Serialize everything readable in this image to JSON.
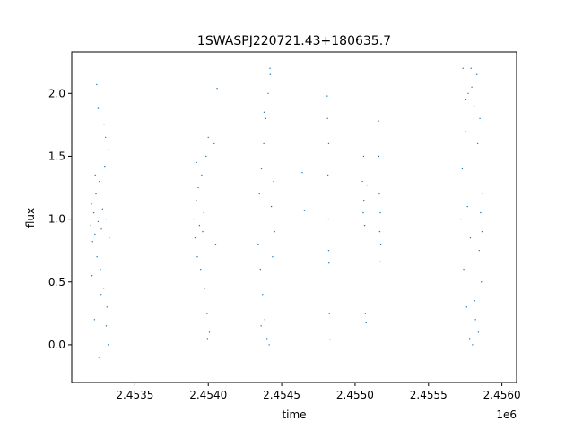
{
  "chart_data": {
    "type": "scatter",
    "title": "1SWASPJ220721.43+180635.7",
    "xlabel": "time",
    "ylabel": "flux",
    "x_offset_label": "1e6",
    "xlim": [
      2453070,
      2456100
    ],
    "ylim": [
      -0.3,
      2.33
    ],
    "x_ticks": [
      2453500,
      2454000,
      2454500,
      2455000,
      2455500,
      2456000
    ],
    "x_tick_labels": [
      "2.4535",
      "2.4540",
      "2.4545",
      "2.4550",
      "2.4555",
      "2.4560"
    ],
    "y_ticks": [
      0.0,
      0.5,
      1.0,
      1.5,
      2.0
    ],
    "y_tick_labels": [
      "0.0",
      "0.5",
      "1.0",
      "1.5",
      "2.0"
    ],
    "grid": false,
    "marker_color": "#1f77b4",
    "series": [
      {
        "points": [
          [
            2453200,
            0.95
          ],
          [
            2453205,
            1.12
          ],
          [
            2453212,
            0.82
          ],
          [
            2453220,
            1.05
          ],
          [
            2453228,
            0.88
          ],
          [
            2453235,
            1.2
          ],
          [
            2453242,
            0.7
          ],
          [
            2453250,
            0.98
          ],
          [
            2453258,
            1.3
          ],
          [
            2453265,
            0.6
          ],
          [
            2453272,
            0.92
          ],
          [
            2453280,
            1.08
          ],
          [
            2453288,
            0.45
          ],
          [
            2453295,
            1.42
          ],
          [
            2453302,
            1.0
          ],
          [
            2453310,
            0.3
          ],
          [
            2453318,
            1.55
          ],
          [
            2453325,
            0.85
          ],
          [
            2453240,
            2.07
          ],
          [
            2453250,
            1.88
          ],
          [
            2453255,
            -0.1
          ],
          [
            2453262,
            -0.17
          ],
          [
            2453225,
            0.2
          ],
          [
            2453300,
            1.65
          ],
          [
            2453290,
            1.75
          ],
          [
            2453305,
            0.15
          ],
          [
            2453318,
            0.0
          ],
          [
            2453208,
            0.55
          ],
          [
            2453230,
            1.35
          ],
          [
            2453270,
            0.4
          ],
          [
            2453900,
            1.0
          ],
          [
            2453910,
            0.85
          ],
          [
            2453918,
            1.15
          ],
          [
            2453925,
            0.7
          ],
          [
            2453932,
            1.25
          ],
          [
            2453940,
            0.95
          ],
          [
            2453948,
            0.6
          ],
          [
            2453955,
            1.35
          ],
          [
            2453962,
            0.9
          ],
          [
            2453970,
            1.05
          ],
          [
            2453978,
            0.45
          ],
          [
            2453985,
            1.5
          ],
          [
            2453992,
            0.25
          ],
          [
            2454000,
            1.65
          ],
          [
            2454008,
            0.1
          ],
          [
            2453995,
            0.05
          ],
          [
            2454040,
            1.6
          ],
          [
            2454050,
            0.8
          ],
          [
            2454060,
            2.04
          ],
          [
            2453920,
            1.45
          ],
          [
            2454330,
            1.0
          ],
          [
            2454340,
            0.8
          ],
          [
            2454348,
            1.2
          ],
          [
            2454355,
            0.6
          ],
          [
            2454362,
            1.4
          ],
          [
            2454370,
            0.4
          ],
          [
            2454378,
            1.6
          ],
          [
            2454385,
            0.2
          ],
          [
            2454392,
            1.8
          ],
          [
            2454400,
            0.05
          ],
          [
            2454408,
            2.0
          ],
          [
            2454415,
            0.0
          ],
          [
            2454422,
            2.15
          ],
          [
            2454430,
            1.1
          ],
          [
            2454438,
            0.7
          ],
          [
            2454445,
            1.3
          ],
          [
            2454452,
            0.9
          ],
          [
            2454360,
            0.15
          ],
          [
            2454420,
            2.2
          ],
          [
            2454380,
            1.85
          ],
          [
            2454640,
            1.37
          ],
          [
            2454655,
            1.07
          ],
          [
            2454810,
            1.98
          ],
          [
            2454812,
            1.8
          ],
          [
            2454815,
            1.35
          ],
          [
            2454818,
            1.0
          ],
          [
            2454820,
            0.75
          ],
          [
            2454822,
            0.65
          ],
          [
            2454825,
            0.25
          ],
          [
            2454828,
            0.04
          ],
          [
            2454820,
            1.6
          ],
          [
            2455050,
            1.3
          ],
          [
            2455055,
            1.05
          ],
          [
            2455060,
            1.15
          ],
          [
            2455065,
            0.95
          ],
          [
            2455070,
            0.25
          ],
          [
            2455075,
            0.18
          ],
          [
            2455080,
            1.27
          ],
          [
            2455058,
            1.5
          ],
          [
            2455160,
            1.78
          ],
          [
            2455162,
            1.5
          ],
          [
            2455165,
            1.2
          ],
          [
            2455168,
            0.9
          ],
          [
            2455170,
            0.66
          ],
          [
            2455172,
            1.05
          ],
          [
            2455175,
            0.8
          ],
          [
            2455720,
            1.0
          ],
          [
            2455730,
            1.4
          ],
          [
            2455740,
            0.6
          ],
          [
            2455750,
            1.7
          ],
          [
            2455760,
            0.3
          ],
          [
            2455770,
            2.0
          ],
          [
            2455780,
            0.05
          ],
          [
            2455790,
            2.2
          ],
          [
            2455800,
            0.0
          ],
          [
            2455810,
            1.9
          ],
          [
            2455820,
            0.2
          ],
          [
            2455830,
            2.15
          ],
          [
            2455840,
            0.1
          ],
          [
            2455850,
            1.8
          ],
          [
            2455860,
            0.5
          ],
          [
            2455870,
            1.2
          ],
          [
            2455735,
            2.2
          ],
          [
            2455755,
            1.95
          ],
          [
            2455795,
            2.05
          ],
          [
            2455815,
            0.35
          ],
          [
            2455835,
            1.6
          ],
          [
            2455845,
            0.75
          ],
          [
            2455855,
            1.05
          ],
          [
            2455865,
            0.9
          ],
          [
            2455765,
            1.1
          ],
          [
            2455785,
            0.85
          ]
        ]
      }
    ]
  }
}
